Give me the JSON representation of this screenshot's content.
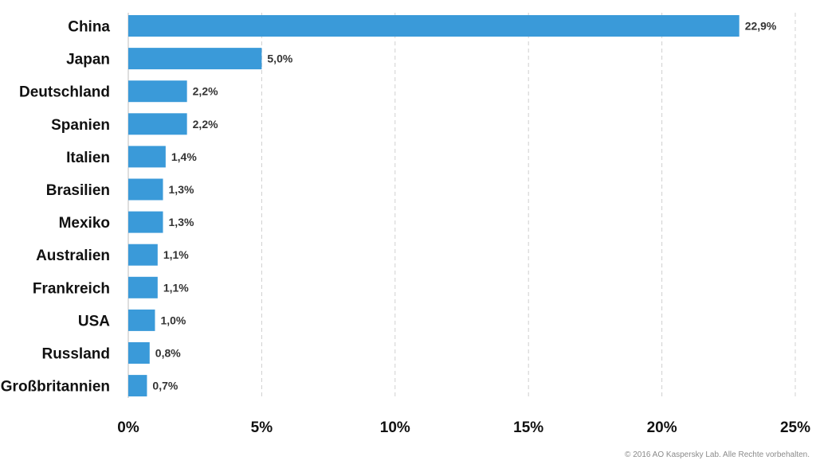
{
  "chart_data": {
    "type": "bar",
    "orientation": "horizontal",
    "categories": [
      "China",
      "Japan",
      "Deutschland",
      "Spanien",
      "Italien",
      "Brasilien",
      "Mexiko",
      "Australien",
      "Frankreich",
      "USA",
      "Russland",
      "Großbritannien"
    ],
    "values": [
      22.9,
      5.0,
      2.2,
      2.2,
      1.4,
      1.3,
      1.3,
      1.1,
      1.1,
      1.0,
      0.8,
      0.7
    ],
    "value_labels": [
      "22,9%",
      "5,0%",
      "2,2%",
      "2,2%",
      "1,4%",
      "1,3%",
      "1,3%",
      "1,1%",
      "1,1%",
      "1,0%",
      "0,8%",
      "0,7%"
    ],
    "x_ticks": [
      0,
      5,
      10,
      15,
      20,
      25
    ],
    "x_tick_labels": [
      "0%",
      "5%",
      "10%",
      "15%",
      "20%",
      "25%"
    ],
    "xlim": [
      0,
      25
    ],
    "grid": "vertical-dashed",
    "bar_color": "#3a9ad9"
  },
  "footer": {
    "copyright": "© 2016 AO Kaspersky Lab. Alle Rechte vorbehalten."
  }
}
